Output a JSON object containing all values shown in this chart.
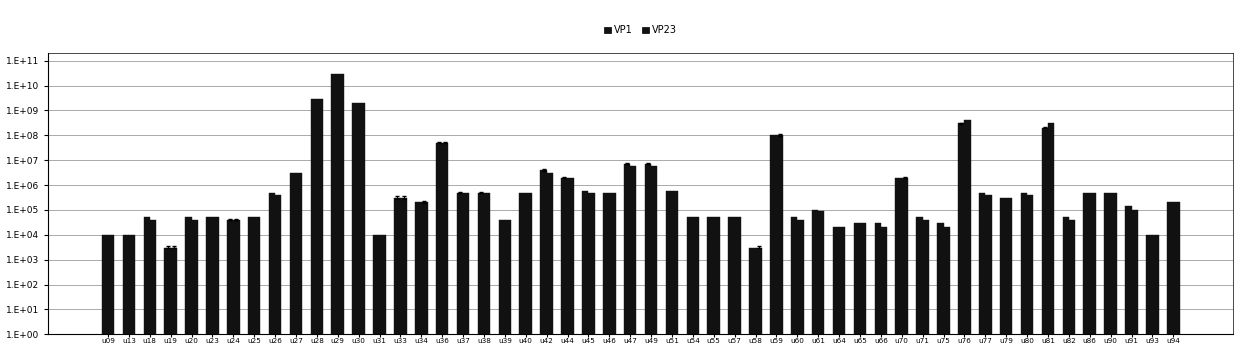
{
  "categories": [
    "u09",
    "u13",
    "u18",
    "u19",
    "u20",
    "u23",
    "u24",
    "u25",
    "u26",
    "u27",
    "u28",
    "u29",
    "u30",
    "u31",
    "u33",
    "u34",
    "u36",
    "u37",
    "u38",
    "u39",
    "u40",
    "u42",
    "u44",
    "u45",
    "u46",
    "u47",
    "u49",
    "u51",
    "u54",
    "u55",
    "u57",
    "u58",
    "u59",
    "u60",
    "u61",
    "u64",
    "u65",
    "u66",
    "u70",
    "u71",
    "u75",
    "u76",
    "u77",
    "u79",
    "u80",
    "u81",
    "u82",
    "u86",
    "u90",
    "u91",
    "u93",
    "u94"
  ],
  "vp1": [
    10000.0,
    10000.0,
    50000.0,
    3000.0,
    50000.0,
    50000.0,
    40000.0,
    50000.0,
    500000.0,
    3000000.0,
    3000000000.0,
    30000000000.0,
    2000000000.0,
    10000.0,
    300000.0,
    200000.0,
    50000000.0,
    500000.0,
    500000.0,
    40000.0,
    500000.0,
    4000000.0,
    2000000.0,
    600000.0,
    500000.0,
    7000000.0,
    7000000.0,
    600000.0,
    50000.0,
    50000.0,
    50000.0,
    3000.0,
    100000000.0,
    50000.0,
    100000.0,
    20000.0,
    30000.0,
    30000.0,
    2000000.0,
    50000.0,
    30000.0,
    300000000.0,
    500000.0,
    300000.0,
    500000.0,
    200000000.0,
    50000.0,
    500000.0,
    500000.0,
    150000.0,
    10000.0,
    200000.0
  ],
  "vp1_err": [
    0,
    0,
    0,
    500.0,
    0,
    0,
    5000.0,
    0,
    0,
    0,
    0,
    0,
    0,
    0,
    50000.0,
    0,
    5000000.0,
    50000.0,
    50000.0,
    0,
    0,
    500000.0,
    200000.0,
    0,
    0,
    500000.0,
    500000.0,
    0,
    0,
    0,
    0,
    0,
    0,
    0,
    0,
    0,
    0,
    0,
    0,
    0,
    0,
    20000000.0,
    0,
    0,
    0,
    10000000.0,
    0,
    0,
    0,
    0,
    0,
    0
  ],
  "vp23": [
    10000.0,
    10000.0,
    40000.0,
    3000.0,
    40000.0,
    50000.0,
    40000.0,
    50000.0,
    400000.0,
    3000000.0,
    3000000000.0,
    30000000000.0,
    2000000000.0,
    10000.0,
    300000.0,
    200000.0,
    50000000.0,
    500000.0,
    500000.0,
    40000.0,
    500000.0,
    3000000.0,
    2000000.0,
    500000.0,
    500000.0,
    6000000.0,
    6000000.0,
    600000.0,
    50000.0,
    50000.0,
    50000.0,
    3000.0,
    100000000.0,
    40000.0,
    90000.0,
    20000.0,
    30000.0,
    20000.0,
    2000000.0,
    40000.0,
    20000.0,
    400000000.0,
    400000.0,
    300000.0,
    400000.0,
    300000000.0,
    40000.0,
    500000.0,
    500000.0,
    100000.0,
    10000.0,
    200000.0
  ],
  "vp23_err": [
    0,
    0,
    0,
    500.0,
    0,
    0,
    5000.0,
    0,
    0,
    0,
    0,
    0,
    0,
    0,
    50000.0,
    30000.0,
    5000000.0,
    0,
    0,
    0,
    0,
    0,
    0,
    0,
    0,
    0,
    0,
    0,
    0,
    0,
    0,
    500.0,
    10000000.0,
    0,
    0,
    0,
    0,
    0,
    200000.0,
    0,
    0,
    0,
    0,
    0,
    0,
    0,
    0,
    0,
    0,
    0,
    0,
    0
  ],
  "bar_color": "#111111",
  "legend_labels": [
    "VP1",
    "VP23"
  ],
  "ymin": 1,
  "ymax": 200000000000.0,
  "background_color": "#ffffff",
  "grid_color": "#888888",
  "bar_width": 0.3
}
